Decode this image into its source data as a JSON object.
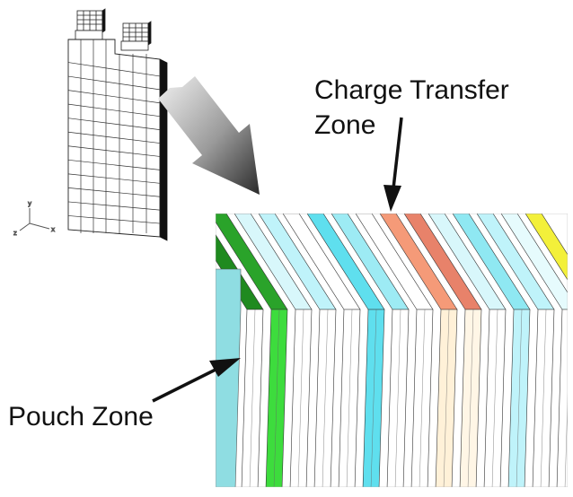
{
  "labels": {
    "charge_transfer_line1": "Charge Transfer",
    "charge_transfer_line2": "Zone",
    "pouch_zone": "Pouch Zone"
  },
  "axis_triad": {
    "y": "y",
    "x": "x",
    "z": "z"
  },
  "colors": {
    "ink": "#111111",
    "green_dark": "#1f8a1f",
    "green_light": "#3ddc3d",
    "cyan": "#5fdfee",
    "cyan_light": "#bff3fa",
    "teal_pouch": "#8fdde2",
    "salmon": "#f59a78",
    "cream": "#fff1d8",
    "yellow": "#f3f03a"
  },
  "layers": [
    {
      "top": "#8fe8f2",
      "face": "#8fdde2"
    },
    {
      "top": "#1f8a1f",
      "face": "#ffffff"
    },
    {
      "top": "#2aa32a",
      "face": "#3ddc3d"
    },
    {
      "top": "#d8f7fb",
      "face": "#ffffff"
    },
    {
      "top": "#bff3fa",
      "face": "#ffffff"
    },
    {
      "top": "#ffffff",
      "face": "#ffffff"
    },
    {
      "top": "#5fdfee",
      "face": "#5fdfee"
    },
    {
      "top": "#9debf4",
      "face": "#ffffff"
    },
    {
      "top": "#ffffff",
      "face": "#ffffff"
    },
    {
      "top": "#f59a78",
      "face": "#fff1d8"
    },
    {
      "top": "#e8826a",
      "face": "#fff6e6"
    },
    {
      "top": "#d8f7fb",
      "face": "#ffffff"
    },
    {
      "top": "#8fe8f2",
      "face": "#bff3fa"
    },
    {
      "top": "#bff3fa",
      "face": "#ffffff"
    },
    {
      "top": "#e6fbfd",
      "face": "#ffffff"
    },
    {
      "top": "#f3f03a",
      "face": "#fff8a8"
    }
  ]
}
